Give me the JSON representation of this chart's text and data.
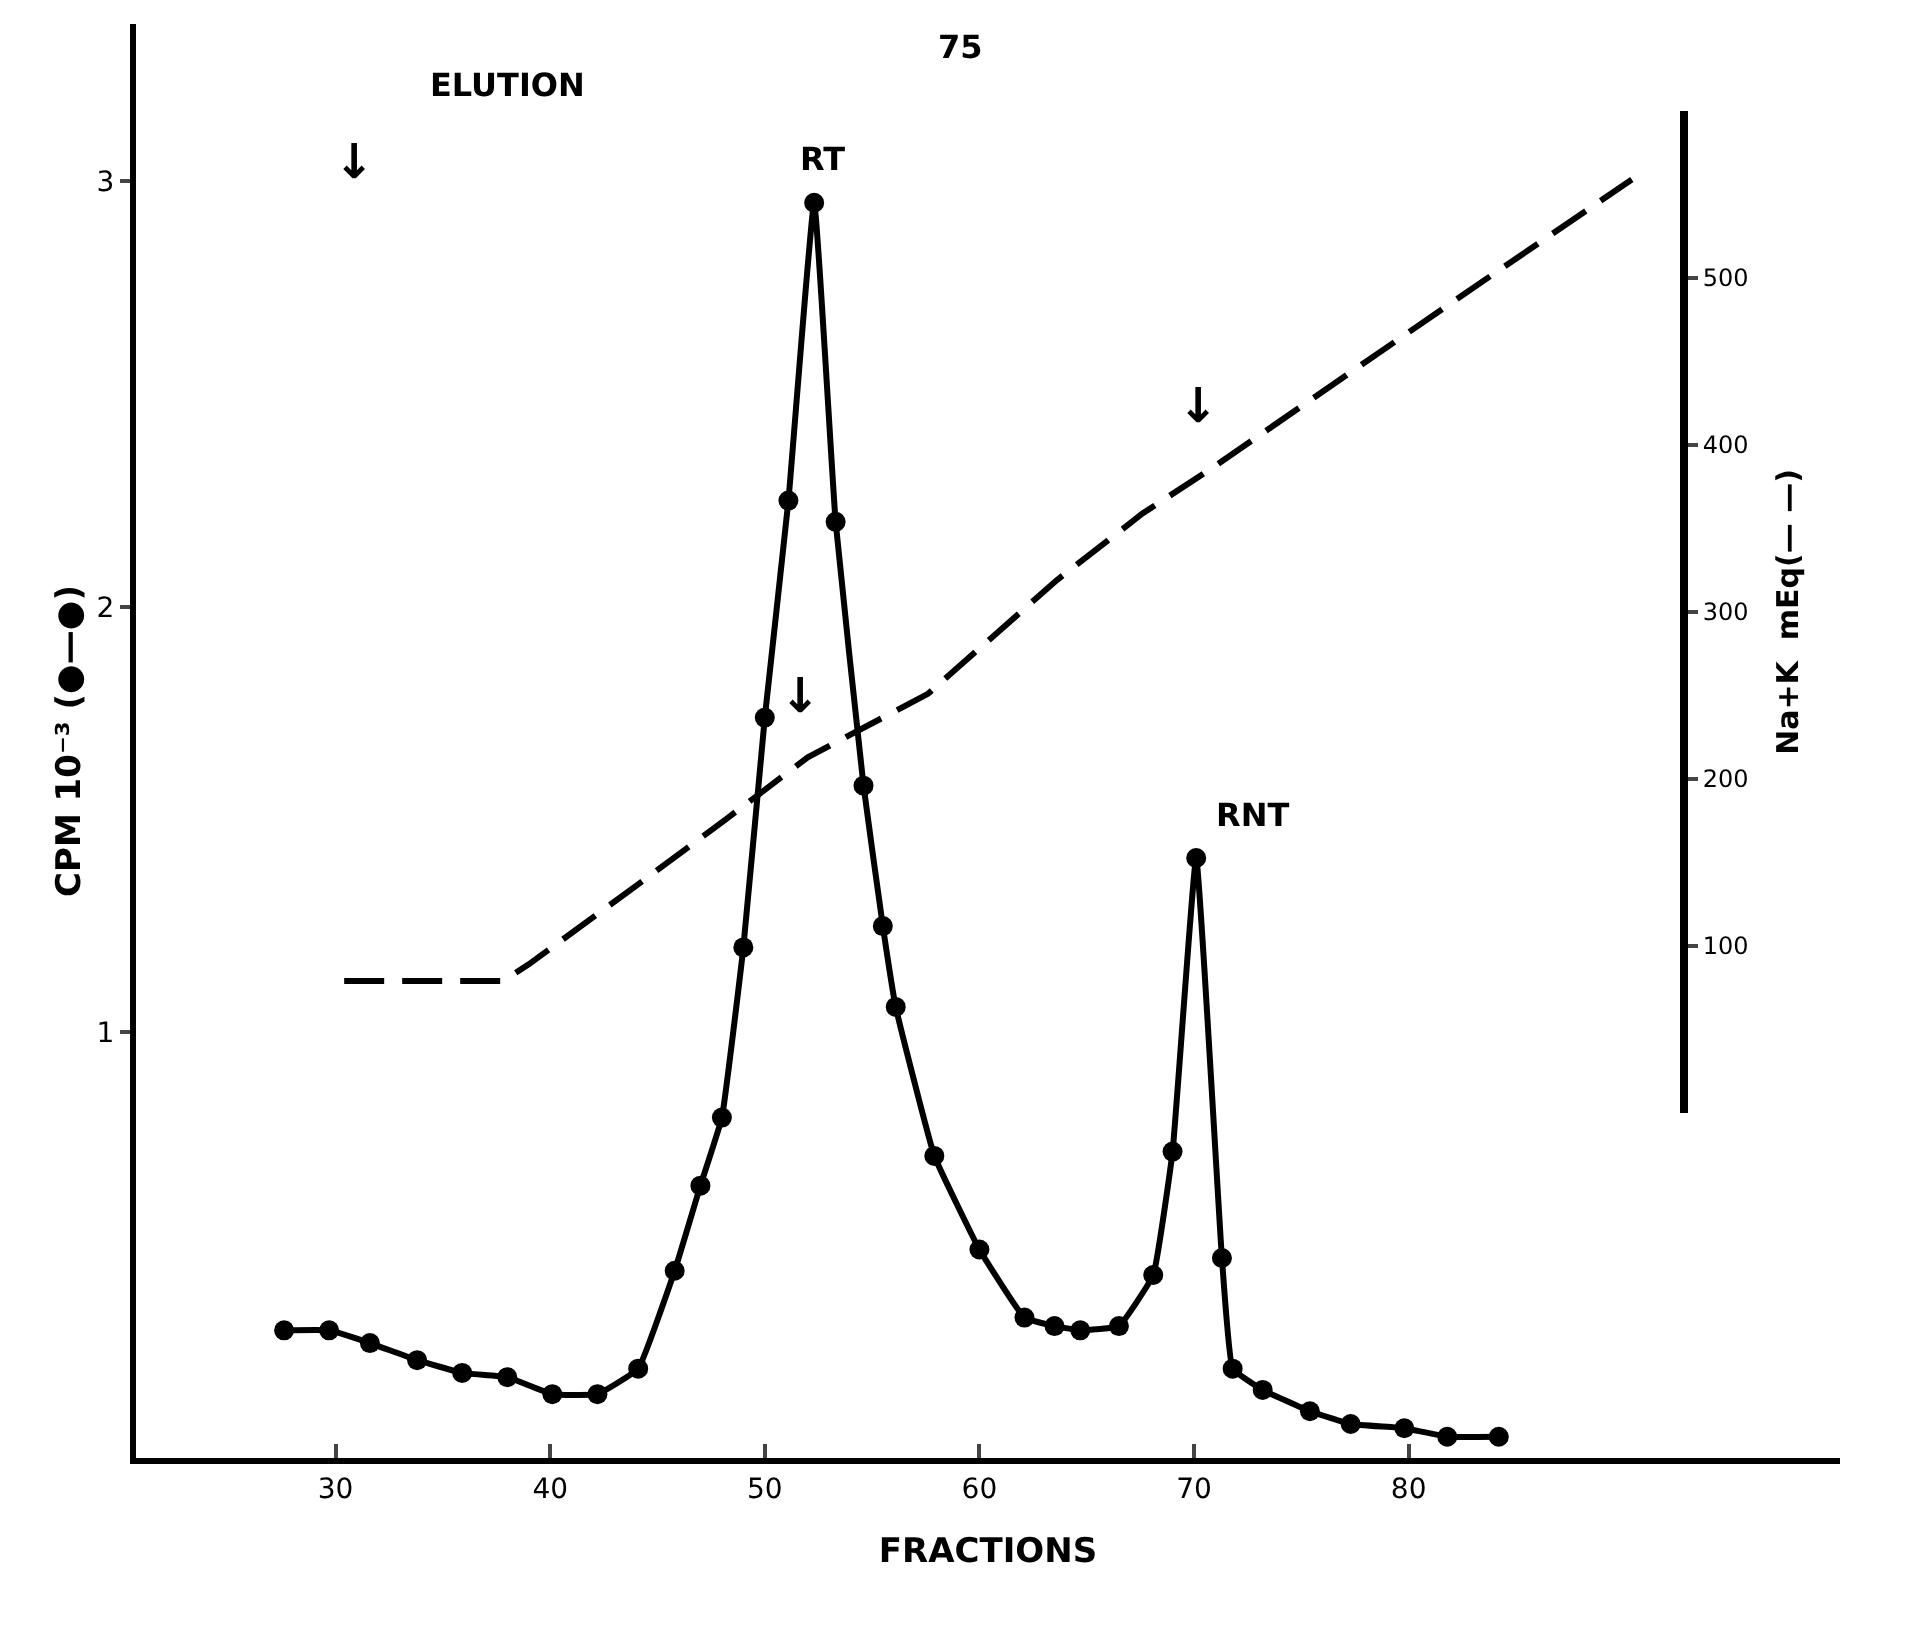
{
  "chart_data": {
    "type": "line",
    "xlabel": "FRACTIONS",
    "ylabel": "CPM 10⁻³ (●—●)",
    "y2label": "Na+K  mEq(— —)",
    "xlim": [
      20.7,
      100.1
    ],
    "xticks": [
      30,
      40,
      50,
      60,
      70,
      80
    ],
    "ylim": [
      0,
      3.37
    ],
    "yticks": [
      1,
      2,
      3
    ],
    "y2lim": [
      0,
      600
    ],
    "y2ticks": [
      100,
      200,
      300,
      400,
      500
    ],
    "grid": false,
    "series": [
      {
        "color": "#000000",
        "marker": "circle",
        "line_style": "solid",
        "x": [
          27.6,
          29.7,
          31.6,
          33.8,
          35.9,
          38.0,
          40.1,
          42.2,
          44.1,
          45.8,
          47.0,
          48.0,
          49.0,
          50.0,
          51.1,
          52.3,
          53.3,
          54.6,
          55.5,
          56.1,
          57.9,
          60.0,
          62.1,
          63.5,
          64.7,
          66.5,
          68.1,
          69.0,
          70.1,
          71.3,
          71.8,
          73.2,
          75.4,
          77.3,
          79.8,
          81.8,
          84.2
        ],
        "values": [
          0.3,
          0.3,
          0.27,
          0.23,
          0.2,
          0.19,
          0.15,
          0.15,
          0.21,
          0.44,
          0.64,
          0.8,
          1.2,
          1.74,
          2.25,
          2.95,
          2.2,
          1.58,
          1.25,
          1.06,
          0.71,
          0.49,
          0.33,
          0.31,
          0.3,
          0.31,
          0.43,
          0.72,
          1.41,
          0.47,
          0.21,
          0.16,
          0.11,
          0.08,
          0.07,
          0.05,
          0.05
        ]
      },
      {
        "color": "#000000",
        "marker": "none",
        "line_style": "dashed",
        "axis": "y2",
        "x": [
          30.4,
          37.8,
          39.0,
          44.0,
          48.2,
          52.0,
          57.6,
          63.6,
          67.6,
          70.7,
          82.2,
          90.4
        ],
        "values": [
          79,
          79,
          89,
          136,
          176,
          213,
          251,
          319,
          359,
          385,
          487,
          559
        ]
      }
    ],
    "annotations": [
      "75",
      "ELUTION",
      "↓",
      "↓",
      "↓",
      {
        "text": "RT",
        "x": 52.3,
        "y": 2.95
      },
      {
        "text": "RNT",
        "x": 70.1,
        "y": 1.41
      }
    ]
  }
}
